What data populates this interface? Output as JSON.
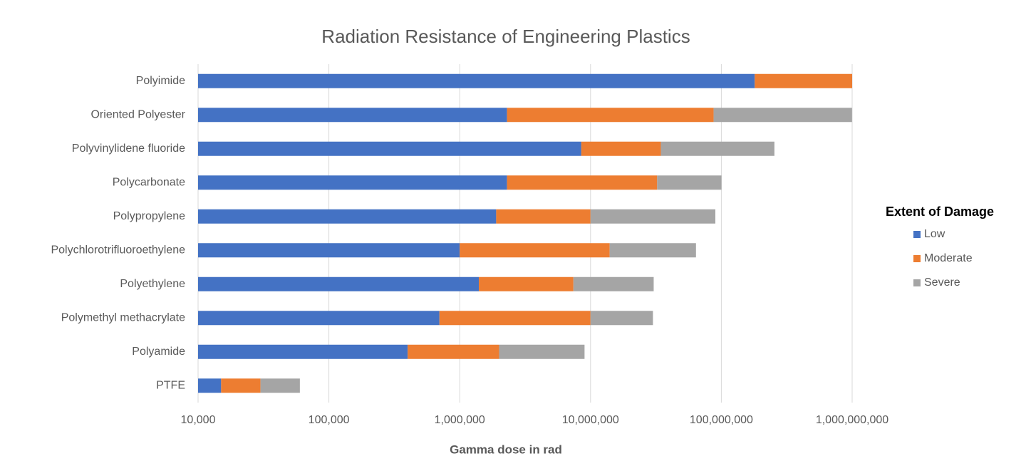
{
  "chart_data": {
    "type": "bar",
    "orientation": "horizontal",
    "stacked": true,
    "title": "Radiation Resistance of Engineering Plastics",
    "x_label": "Gamma dose in rad",
    "categories": [
      "Polyimide",
      "Oriented Polyester",
      "Polyvinylidene fluoride",
      "Polycarbonate",
      "Polypropylene",
      "Polychlorotrifluoroethylene",
      "Polyethylene",
      "Polymethyl methacrylate",
      "Polyamide",
      "PTFE"
    ],
    "legend_title": "Extent of Damage",
    "legend": "right",
    "series": [
      {
        "name": "Low",
        "color": "#4472c4",
        "values": [
          180000000,
          2300000,
          8500000,
          2300000,
          1900000,
          1000000,
          1400000,
          700000,
          400000,
          15000
        ]
      },
      {
        "name": "Moderate",
        "color": "#ed7d31",
        "values": [
          820000000,
          85000000,
          26000000,
          30000000,
          8100000,
          13000000,
          6000000,
          9300000,
          1600000,
          15000
        ]
      },
      {
        "name": "Severe",
        "color": "#a5a5a5",
        "values": [
          0,
          910000000,
          220000000,
          68000000,
          80000000,
          50000000,
          23000000,
          20000000,
          7000000,
          30000
        ]
      }
    ],
    "xscale": "log",
    "xlim": [
      10000,
      1000000000
    ],
    "xticks": [
      {
        "value": 10000,
        "label": "10,000"
      },
      {
        "value": 100000,
        "label": "100,000"
      },
      {
        "value": 1000000,
        "label": "1,000,000"
      },
      {
        "value": 10000000,
        "label": "10,000,000"
      },
      {
        "value": 100000000,
        "label": "100,000,000"
      },
      {
        "value": 1000000000,
        "label": "1,000,000,000"
      }
    ],
    "grid": true
  }
}
